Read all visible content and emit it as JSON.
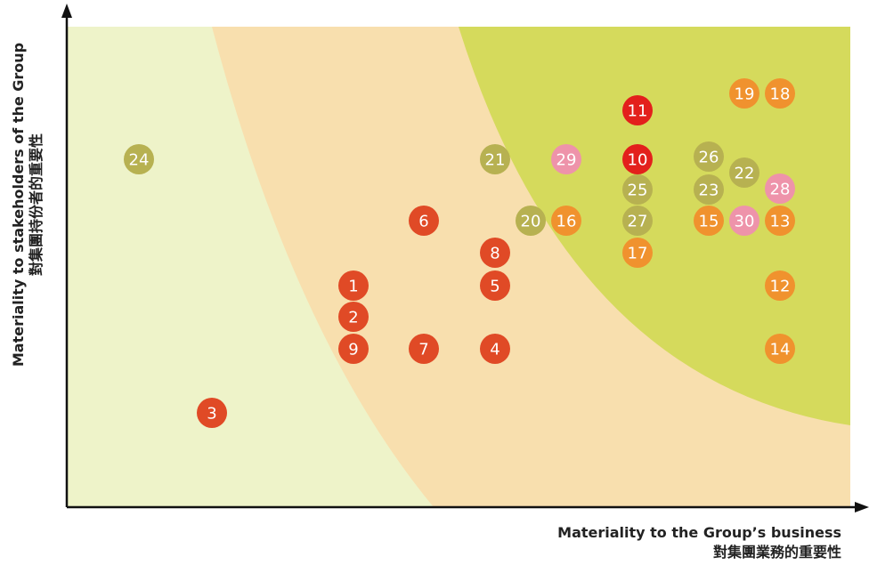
{
  "axes": {
    "y_label": "Materiality to stakeholders of the Group",
    "y_label_zh": "對集團持份者的重要性",
    "x_label": "Materiality to the Group’s business",
    "x_label_zh": "對集團業務的重要性"
  },
  "nodes": [
    {
      "label": "24"
    },
    {
      "label": "3"
    },
    {
      "label": "1"
    },
    {
      "label": "2"
    },
    {
      "label": "9"
    },
    {
      "label": "7"
    },
    {
      "label": "6"
    },
    {
      "label": "4"
    },
    {
      "label": "5"
    },
    {
      "label": "8"
    },
    {
      "label": "21"
    },
    {
      "label": "20"
    },
    {
      "label": "16"
    },
    {
      "label": "29"
    },
    {
      "label": "11"
    },
    {
      "label": "10"
    },
    {
      "label": "25"
    },
    {
      "label": "27"
    },
    {
      "label": "17"
    },
    {
      "label": "26"
    },
    {
      "label": "23"
    },
    {
      "label": "22"
    },
    {
      "label": "19"
    },
    {
      "label": "18"
    },
    {
      "label": "28"
    },
    {
      "label": "15"
    },
    {
      "label": "30"
    },
    {
      "label": "13"
    },
    {
      "label": "12"
    },
    {
      "label": "14"
    }
  ]
}
